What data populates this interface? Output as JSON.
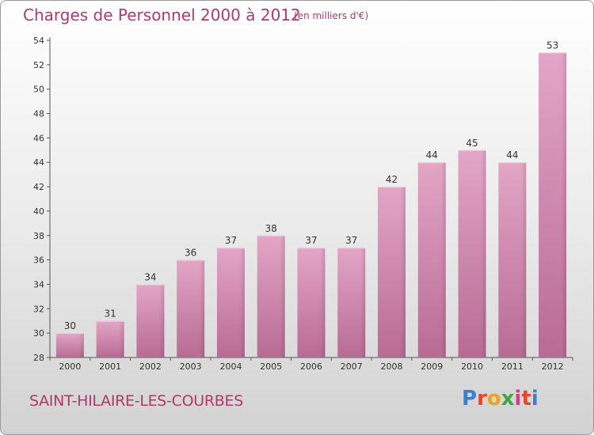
{
  "chart_data": {
    "type": "bar",
    "title": "Charges de Personnel 2000 à 2012",
    "subtitle": "(en milliers d'€)",
    "categories": [
      "2000",
      "2001",
      "2002",
      "2003",
      "2004",
      "2005",
      "2006",
      "2007",
      "2008",
      "2009",
      "2010",
      "2011",
      "2012"
    ],
    "values": [
      30,
      31,
      34,
      36,
      37,
      38,
      37,
      37,
      42,
      44,
      45,
      44,
      53
    ],
    "ylim": [
      28,
      54
    ],
    "yticks": [
      28,
      30,
      32,
      34,
      36,
      38,
      40,
      42,
      44,
      46,
      48,
      50,
      52,
      54
    ],
    "grid": false,
    "bar_color": "#d88bb4"
  },
  "footer": {
    "commune": "SAINT-HILAIRE-LES-COURBES",
    "logo_letters": [
      "P",
      "r",
      "o",
      "x",
      "i",
      "t",
      "i"
    ],
    "logo_colors": [
      "#3a7fd0",
      "#e8452c",
      "#f0a21a",
      "#3aa845",
      "#d63c8a",
      "#e8452c",
      "#3a7fd0"
    ]
  }
}
